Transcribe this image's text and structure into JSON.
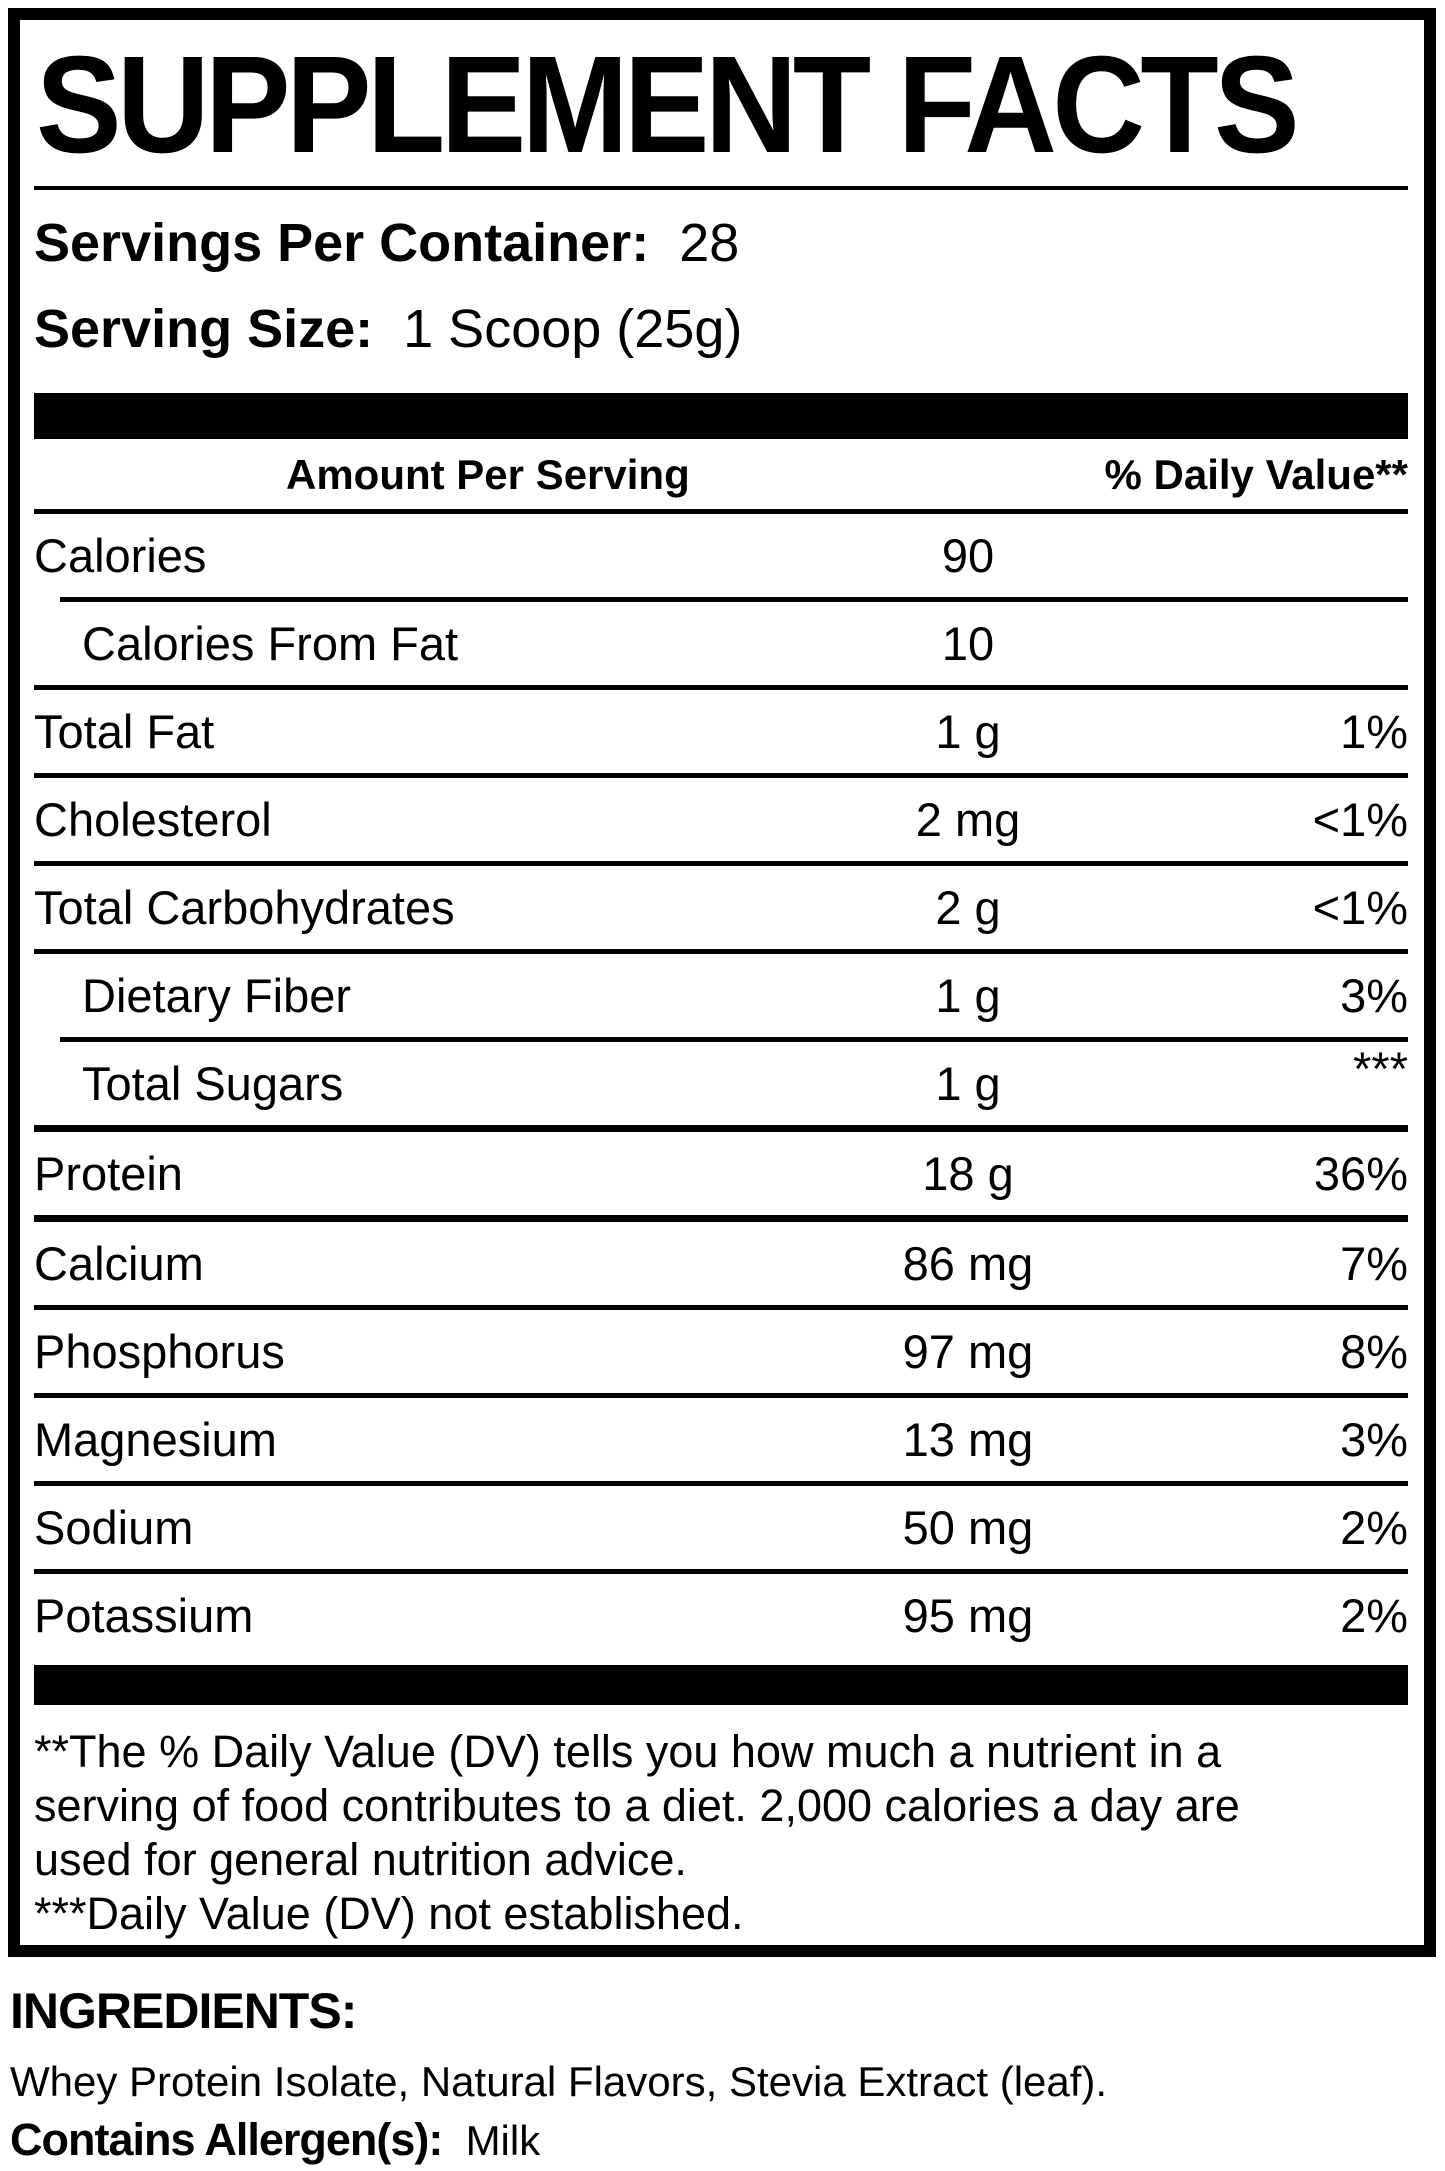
{
  "label": {
    "title": "SUPPLEMENT FACTS",
    "servings_per_container_label": "Servings Per Container:",
    "servings_per_container_value": "28",
    "serving_size_label": "Serving Size:",
    "serving_size_value": "1 Scoop (25g)",
    "columns": {
      "amount": "Amount Per Serving",
      "daily_value": "% Daily Value**"
    },
    "rows": [
      {
        "name": "Calories",
        "amount": "90",
        "dv": "",
        "sub": false,
        "dv_sup": false,
        "rule_after": "indent"
      },
      {
        "name": "Calories From Fat",
        "amount": "10",
        "dv": "",
        "sub": true,
        "dv_sup": false,
        "rule_after": "full"
      },
      {
        "name": "Total Fat",
        "amount": "1 g",
        "dv": "1%",
        "sub": false,
        "dv_sup": false,
        "rule_after": "full"
      },
      {
        "name": "Cholesterol",
        "amount": "2 mg",
        "dv": "<1%",
        "sub": false,
        "dv_sup": false,
        "rule_after": "full"
      },
      {
        "name": "Total Carbohydrates",
        "amount": "2 g",
        "dv": "<1%",
        "sub": false,
        "dv_sup": false,
        "rule_after": "full"
      },
      {
        "name": "Dietary Fiber",
        "amount": "1 g",
        "dv": "3%",
        "sub": true,
        "dv_sup": false,
        "rule_after": "indent"
      },
      {
        "name": "Total Sugars",
        "amount": "1 g",
        "dv": "***",
        "sub": true,
        "dv_sup": true,
        "rule_after": "thick"
      },
      {
        "name": "Protein",
        "amount": "18 g",
        "dv": "36%",
        "sub": false,
        "dv_sup": false,
        "rule_after": "thick"
      },
      {
        "name": "Calcium",
        "amount": "86 mg",
        "dv": "7%",
        "sub": false,
        "dv_sup": false,
        "rule_after": "full"
      },
      {
        "name": "Phosphorus",
        "amount": "97 mg",
        "dv": "8%",
        "sub": false,
        "dv_sup": false,
        "rule_after": "full"
      },
      {
        "name": "Magnesium",
        "amount": "13 mg",
        "dv": "3%",
        "sub": false,
        "dv_sup": false,
        "rule_after": "full"
      },
      {
        "name": "Sodium",
        "amount": "50 mg",
        "dv": "2%",
        "sub": false,
        "dv_sup": false,
        "rule_after": "full"
      },
      {
        "name": "Potassium",
        "amount": "95 mg",
        "dv": "2%",
        "sub": false,
        "dv_sup": false,
        "rule_after": "none"
      }
    ],
    "footnote_lines": [
      "**The % Daily Value (DV) tells you how much a nutrient in a",
      "serving of food contributes to a diet. 2,000 calories a day are",
      "used for general nutrition advice.",
      "***Daily Value (DV) not established."
    ],
    "colors": {
      "ink": "#000000",
      "paper": "#ffffff"
    }
  },
  "ingredients": {
    "heading": "INGREDIENTS:",
    "list": "Whey Protein Isolate, Natural Flavors, Stevia Extract (leaf).",
    "allergen_label": "Contains Allergen(s):",
    "allergen_value": "Milk"
  }
}
